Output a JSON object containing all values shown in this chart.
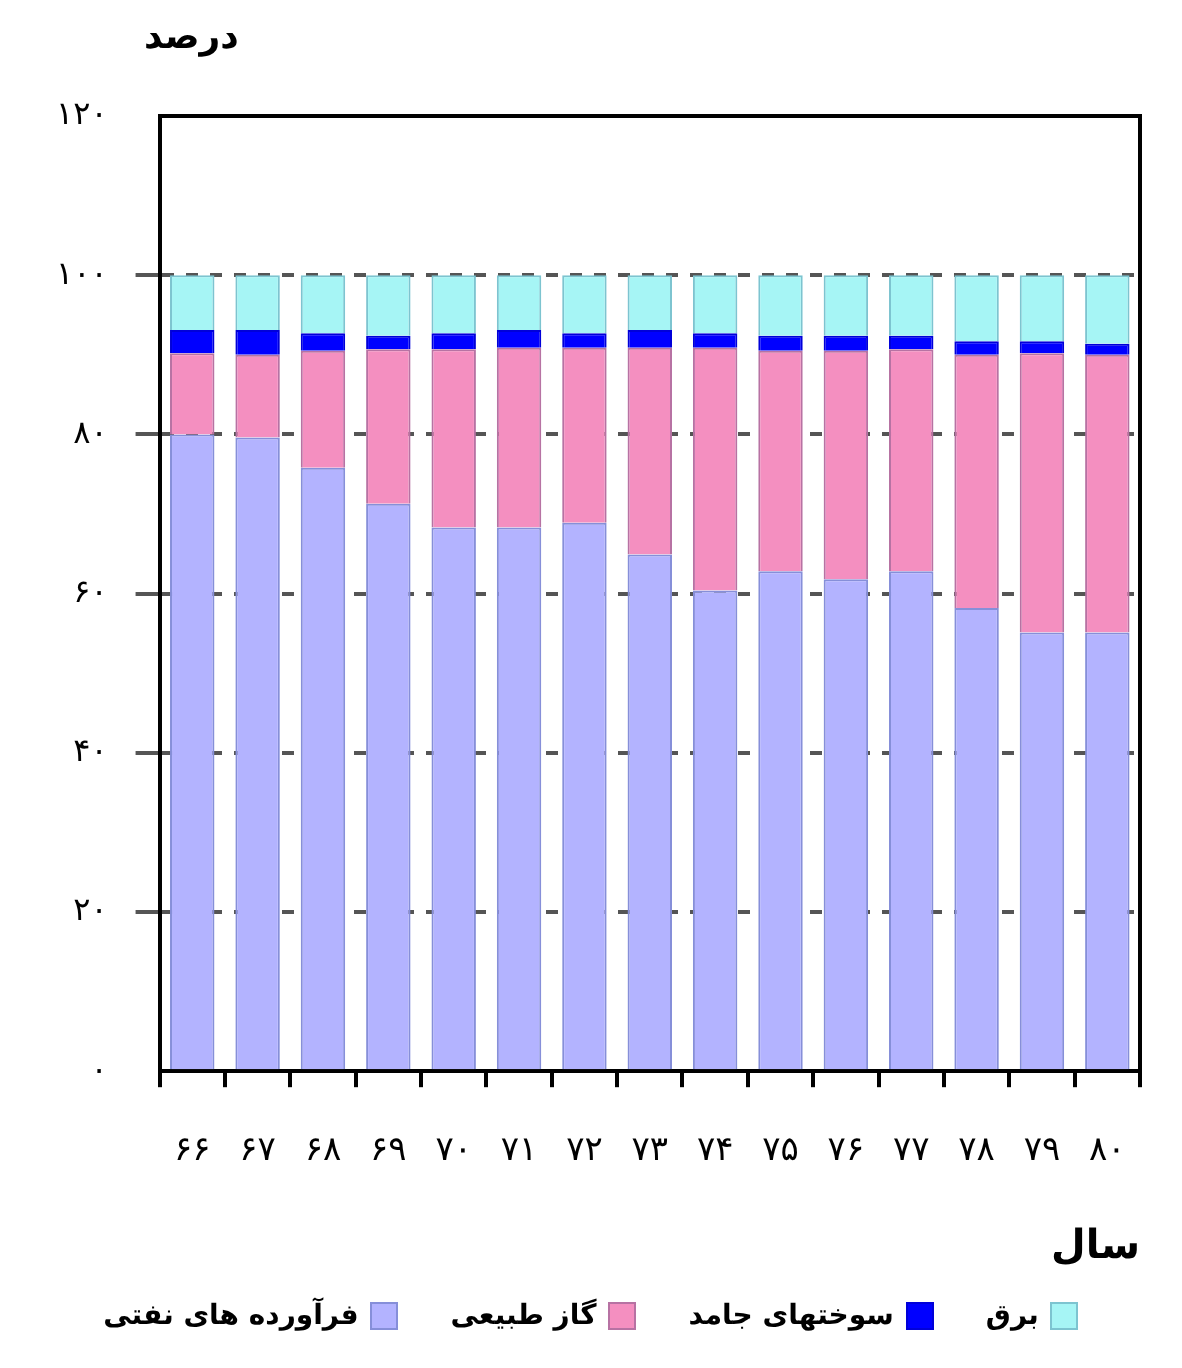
{
  "chart_data": {
    "type": "bar",
    "stacked": true,
    "ylabel": "درصد",
    "xlabel": "سال",
    "categories": [
      "۶۶",
      "۶۷",
      "۶۸",
      "۶۹",
      "۷۰",
      "۷۱",
      "۷۲",
      "۷۳",
      "۷۴",
      "۷۵",
      "۷۶",
      "۷۷",
      "۷۸",
      "۷۹",
      "۸۰"
    ],
    "series": [
      {
        "name": "فرآورده های نفتی",
        "color": "#b3b3ff",
        "values": [
          80,
          79.6,
          75.8,
          71.3,
          68.3,
          68.3,
          68.9,
          64.9,
          60.4,
          62.8,
          61.8,
          62.8,
          58.2,
          55.1,
          55.1
        ]
      },
      {
        "name": "گاز طبیعی",
        "color": "#f48fc0",
        "values": [
          10.2,
          10.4,
          14.7,
          19.4,
          22.4,
          22.6,
          22,
          26,
          30.5,
          27.7,
          28.7,
          27.9,
          31.8,
          35.1,
          34.9
        ]
      },
      {
        "name": "سوختهای جامد",
        "color": "#0000ff",
        "values": [
          2.9,
          3.1,
          2.2,
          1.7,
          2,
          2.2,
          1.8,
          2.2,
          1.8,
          1.9,
          1.9,
          1.7,
          1.7,
          1.5,
          1.4
        ]
      },
      {
        "name": "برق",
        "color": "#a6f5f5",
        "values": [
          6.9,
          6.9,
          7.3,
          7.6,
          7.3,
          6.9,
          7.3,
          6.9,
          7.3,
          7.6,
          7.6,
          7.6,
          8.3,
          8.3,
          8.6
        ]
      }
    ],
    "ylim": [
      0,
      120
    ],
    "yticks": [
      {
        "value": 0,
        "label": "۰"
      },
      {
        "value": 20,
        "label": "۲۰"
      },
      {
        "value": 40,
        "label": "۴۰"
      },
      {
        "value": 60,
        "label": "۶۰"
      },
      {
        "value": 80,
        "label": "۸۰"
      },
      {
        "value": 100,
        "label": "۱۰۰"
      },
      {
        "value": 120,
        "label": "۱۲۰"
      }
    ],
    "grid": "y",
    "legend": "bottom"
  }
}
